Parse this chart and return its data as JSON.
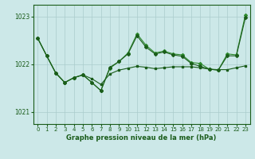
{
  "title": "Graphe pression niveau de la mer (hPa)",
  "background_color": "#cce8e8",
  "grid_color": "#aacccc",
  "line_color_dark": "#1a5c1a",
  "line_color_medium": "#2e8b2e",
  "ylim": [
    1020.75,
    1023.25
  ],
  "yticks": [
    1021,
    1022,
    1023
  ],
  "xlim": [
    -0.5,
    23.5
  ],
  "xticks": [
    0,
    1,
    2,
    3,
    4,
    5,
    6,
    7,
    8,
    9,
    10,
    11,
    12,
    13,
    14,
    15,
    16,
    17,
    18,
    19,
    20,
    21,
    22,
    23
  ],
  "series_flat": [
    1022.55,
    1022.18,
    1021.82,
    1021.62,
    1021.72,
    1021.78,
    1021.7,
    1021.58,
    1021.8,
    1021.88,
    1021.92,
    1021.96,
    1021.94,
    1021.91,
    1021.93,
    1021.95,
    1021.95,
    1021.95,
    1021.93,
    1021.9,
    1021.89,
    1021.89,
    1021.93,
    1021.97
  ],
  "series_volatile1": [
    1022.55,
    1022.18,
    1021.82,
    1021.62,
    1021.72,
    1021.78,
    1021.62,
    1021.45,
    1021.92,
    1022.06,
    1022.24,
    1022.64,
    1022.4,
    1022.24,
    1022.28,
    1022.22,
    1022.2,
    1022.04,
    1022.02,
    1021.9,
    1021.88,
    1022.22,
    1022.2,
    1023.04
  ],
  "series_volatile2": [
    1022.55,
    1022.18,
    1021.82,
    1021.62,
    1021.72,
    1021.78,
    1021.62,
    1021.45,
    1021.94,
    1022.06,
    1022.22,
    1022.6,
    1022.36,
    1022.22,
    1022.26,
    1022.2,
    1022.17,
    1022.02,
    1021.96,
    1021.9,
    1021.88,
    1022.18,
    1022.18,
    1022.98
  ]
}
